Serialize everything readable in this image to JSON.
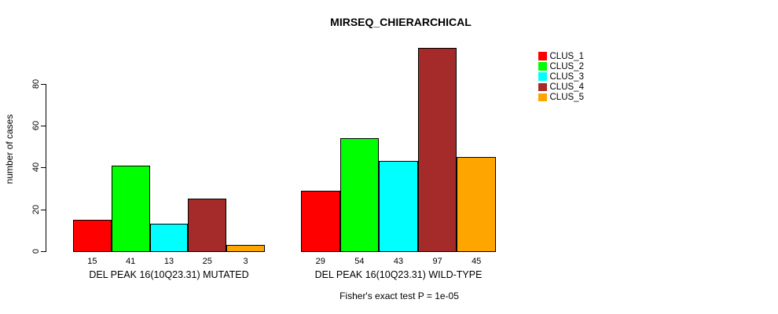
{
  "title": "MIRSEQ_CHIERARCHICAL",
  "ylabel": "number of cases",
  "footnote": "Fisher's exact test P = 1e-05",
  "chart_data": {
    "type": "bar",
    "title": "MIRSEQ_CHIERARCHICAL",
    "xlabel": "",
    "ylabel": "number of cases",
    "categories": [
      "DEL PEAK 16(10Q23.31) MUTATED",
      "DEL PEAK 16(10Q23.31) WILD-TYPE"
    ],
    "series": [
      {
        "name": "CLUS_1",
        "color": "#FF0000",
        "values": [
          15,
          29
        ]
      },
      {
        "name": "CLUS_2",
        "color": "#00FF00",
        "values": [
          41,
          54
        ]
      },
      {
        "name": "CLUS_3",
        "color": "#00FFFF",
        "values": [
          13,
          43
        ]
      },
      {
        "name": "CLUS_4",
        "color": "#A52A2A",
        "values": [
          25,
          97
        ]
      },
      {
        "name": "CLUS_5",
        "color": "#FFA500",
        "values": [
          3,
          45
        ]
      }
    ],
    "show_bar_value_labels": true,
    "yticks": [
      0,
      20,
      40,
      60,
      80
    ],
    "ylim": [
      0,
      100
    ],
    "grid": false,
    "legend_position": "right",
    "annotation": "Fisher's exact test P = 1e-05"
  }
}
